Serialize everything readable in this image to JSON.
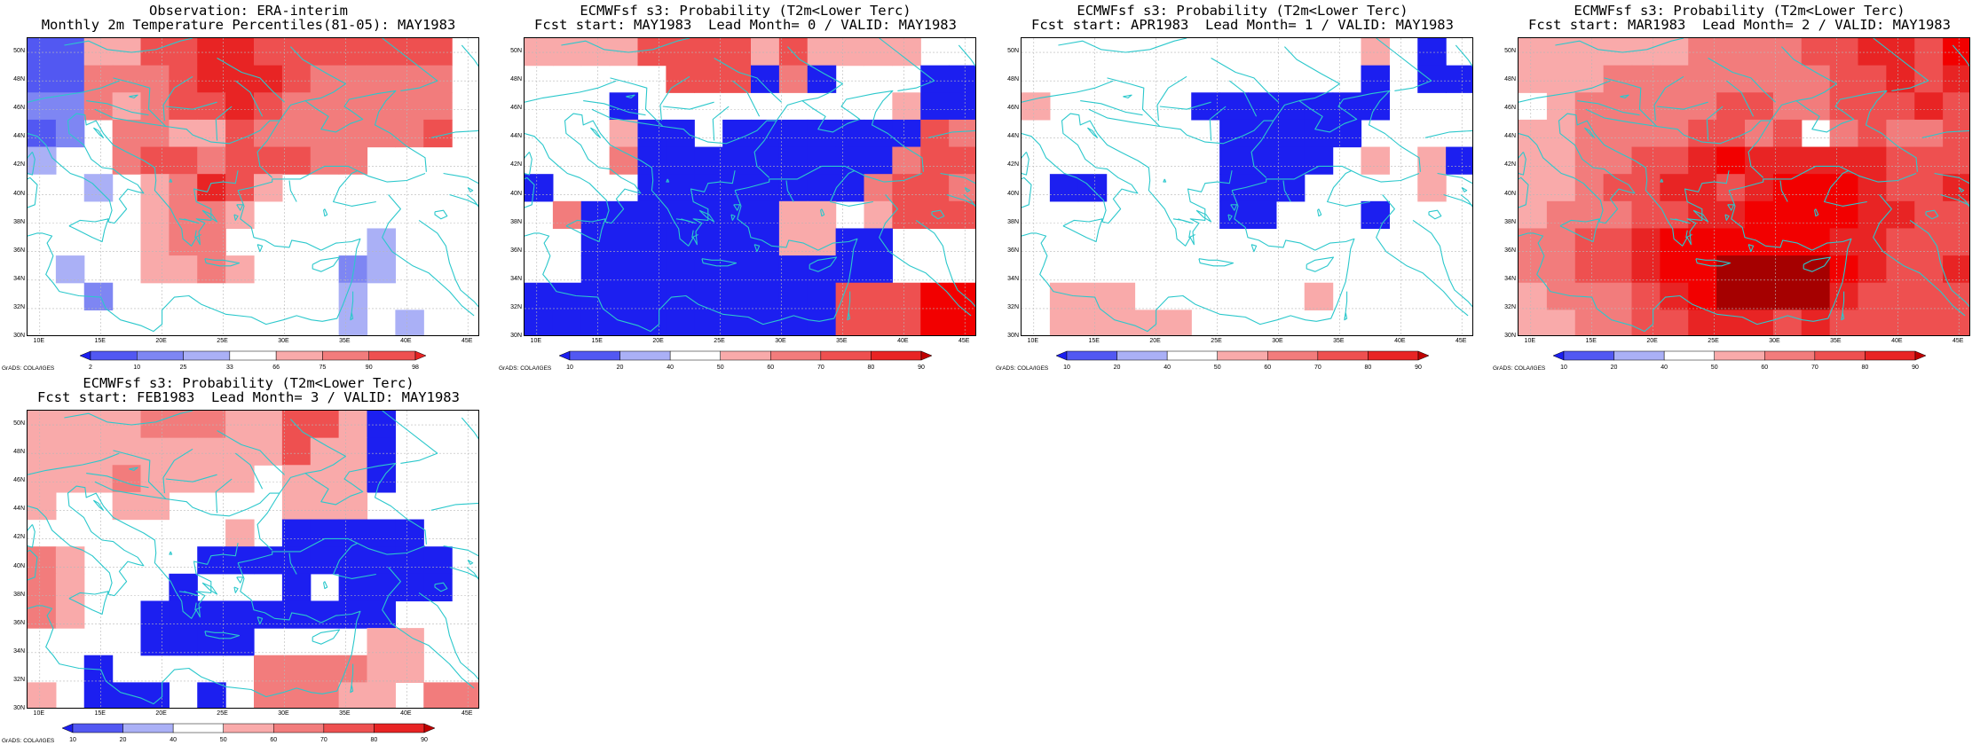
{
  "colors": {
    "red_levels": [
      "#ffffff",
      "#f9aaaa",
      "#f27c7c",
      "#ee5050",
      "#e82424",
      "#f20000",
      "#a50000"
    ],
    "blue_levels": [
      "#ffffff",
      "#aab0f6",
      "#7e86f3",
      "#5258f2",
      "#1c1ff0"
    ],
    "coast": "#2cc8cc",
    "grid": "#b8b8b8"
  },
  "axes": {
    "lat_ticks": [
      "50N",
      "48N",
      "46N",
      "44N",
      "42N",
      "40N",
      "38N",
      "36N",
      "34N",
      "32N",
      "30N"
    ],
    "lon_ticks": [
      "10E",
      "15E",
      "20E",
      "25E",
      "30E",
      "35E",
      "40E",
      "45E"
    ],
    "lon_range": [
      9,
      46
    ],
    "lat_range": [
      30,
      51
    ],
    "grid": true
  },
  "credit": "GrADS: COLA/IGES",
  "obs_colorbar": {
    "labels": [
      "2",
      "10",
      "25",
      "33",
      "66",
      "75",
      "90",
      "98"
    ],
    "colors": [
      "#1c1ff0",
      "#5258f2",
      "#7e86f3",
      "#aab0f6",
      "#ffffff",
      "#f9aaaa",
      "#f27c7c",
      "#ee5050",
      "#e82424"
    ]
  },
  "prob_colorbar": {
    "labels": [
      "10",
      "20",
      "40",
      "50",
      "60",
      "70",
      "80",
      "90"
    ],
    "colors": [
      "#1c1ff0",
      "#5258f2",
      "#aab0f6",
      "#ffffff",
      "#f9aaaa",
      "#f27c7c",
      "#ee5050",
      "#e82424",
      "#c00000"
    ]
  },
  "panels": [
    {
      "title1": "Observation: ERA-interim",
      "title2": "Monthly 2m Temperature Percentiles(81-05): MAY1983",
      "colorbar": "obs",
      "grid_values": [
        "-3 -3 +1 +1 +3 +3 +4 +4 +3 +3 +3 +3 +3 +3 +3 0",
        "-3 -3 +2 +2 +2 +3 +4 +4 +4 +3 +2 +2 +2 +2 +2 0",
        "-2 -2 +2 +1 +2 +3 +3 +4 +3 +2 +2 +2 +2 +2 +2 0",
        "-3 -2 0 +2 +2 +1 +1 +3 +2 +2 +2 +2 +2 +2 +3 0",
        "-1 0 0 +2 +3 +3 +2 +3 +3 +3 +2 +2 0 0 0 0",
        "0 0 -1 0 +1 +2 +4 +3 +1 0 0 0 0 0 0 0",
        "0 0 0 0 +1 +2 +2 +1 0 0 0 0 0 0 0 0",
        "0 0 0 0 +1 +2 +2 0 0 0 0 0 -1 0 0 0",
        "0 -1 0 0 +1 +1 +2 +1 0 0 0 -2 -1 0 0 0",
        "0 0 -2 0 0 0 0 0 0 0 0 -1 0 0 0 0",
        "0 0 0 0 0 0 0 0 0 0 0 -1 0 -1 0 0"
      ]
    },
    {
      "title1": "ECMWFsf s3: Probability (T2m<Lower Terc)",
      "title2": "Fcst start: MAY1983  Lead Month= 0 / VALID: MAY1983",
      "colorbar": "prob",
      "grid_values": [
        "+1 +1 +1 +1 +3 +3 +3 +3 +1 +3 +1 +1 +1 +1 0 0",
        "0 0 0 0 0 +3 +3 +3 -4 +2 -4 0 0 0 -4 -4",
        "0 0 0 -4 0 0 0 0 0 0 0 0 0 +1 -4 -4",
        "0 0 0 +1 -4 -4 0 -4 -4 -4 -4 -4 -4 -4 +3 +2",
        "0 0 0 +2 -4 -4 -4 -4 -4 -4 -4 -4 -4 +2 +3 +3",
        "-4 0 0 0 -4 -4 -4 -4 -4 -4 -4 -4 +2 +3 +3 +2",
        "0 +2 -4 -4 -4 -4 -4 -4 -4 +1 +1 0 +1 +3 +3 +3",
        "0 0 -4 -4 -4 -4 -4 -4 -4 +1 +1 -4 -4 0 0 0",
        "0 0 -4 -4 -4 -4 -4 -4 -4 -4 -4 -4 -4 0 0 0",
        "-4 -4 -4 -4 -4 -4 -4 -4 -4 -4 -4 +3 +3 +3 +5 +5",
        "-4 -4 -4 -4 -4 -4 -4 -4 -4 -4 -4 +3 +3 +3 +5 +5"
      ]
    },
    {
      "title1": "ECMWFsf s3: Probability (T2m<Lower Terc)",
      "title2": "Fcst start: APR1983  Lead Month= 1 / VALID: MAY1983",
      "colorbar": "prob",
      "grid_values": [
        "0 0 0 0 0 0 0 0 0 0 0 0 +1 0 -4 0",
        "0 0 0 0 0 0 0 0 0 0 0 0 -4 0 -4 -4",
        "+1 0 0 0 0 0 -4 -4 -4 -4 -4 -4 -4 0 0 0",
        "0 0 0 0 0 0 0 -4 -4 -4 -4 -4 0 0 0 0",
        "0 0 0 0 0 0 0 -4 -4 -4 -4 0 +1 0 +1 -4",
        "0 -4 -4 0 0 0 0 -4 -4 -4 0 0 0 0 +1 0",
        "0 0 0 0 0 0 0 -4 -4 0 0 0 -4 0 0 0",
        "0 0 0 0 0 0 0 0 0 0 0 0 0 0 0 0",
        "0 0 0 0 0 0 0 0 0 0 0 0 0 0 0 0",
        "0 +1 +1 +1 0 0 0 0 0 0 +1 0 0 0 0 0",
        "0 +1 +1 +1 +1 +1 0 0 0 0 0 0 0 0 0 0"
      ]
    },
    {
      "title1": "ECMWFsf s3: Probability (T2m<Lower Terc)",
      "title2": "Fcst start: MAR1983  Lead Month= 2 / VALID: MAY1983",
      "colorbar": "prob",
      "grid_values": [
        "+1 +1 +1 +1 +1 +1 +2 +2 +2 +2 +3 +3 +4 +4 +3 +5",
        "+1 +1 +1 +2 +2 +2 +2 +2 +2 +2 +2 +3 +3 +4 +3 +4",
        "0 +1 +2 +2 +2 +2 +2 +3 +3 +2 +2 +3 +3 +3 +4 +3",
        "+1 +1 +2 +2 +2 +2 +3 +3 +2 +3 0 +2 +3 +2 +2 +3",
        "+1 +1 +2 +2 +3 +3 +4 +5 +4 +4 +4 +4 +4 +3 +3 +3",
        "+1 +1 +2 +3 +3 +4 +4 +3 +4 +5 +5 +5 +4 +3 +3 +4",
        "+1 +2 +2 +2 +3 +3 +4 +4 +5 +5 +5 +5 +4 +4 +3 +3",
        "+2 +2 +3 +3 +4 +5 +5 +5 +5 +5 +5 +4 +4 +3 +3 +3",
        "+2 +2 +3 +3 +4 +5 +5 +6 +6 +6 +6 +5 +4 +3 +3 +4",
        "+1 +2 +2 +2 +3 +4 +5 +6 +6 +6 +6 +4 +3 +3 +3 +3",
        "+1 +1 +2 +2 +3 +3 +4 +4 +4 +3 +4 +3 +3 +3 +3 +3"
      ]
    },
    {
      "title1": "ECMWFsf s3: Probability (T2m<Lower Terc)",
      "title2": "Fcst start: FEB1983  Lead Month= 3 / VALID: MAY1983",
      "colorbar": "prob",
      "grid_values": [
        "+1 +1 +1 +1 +2 +2 +2 +1 +1 +3 +3 +1 -4 0 0 0",
        "+1 +1 +1 +1 +1 +1 +1 +1 +1 +3 +1 +1 -4 0 0 0",
        "+1 +1 +1 +2 +1 +1 +1 +1 0 +1 +1 +1 -4 0 0 0",
        "+1 0 0 +1 +1 0 0 0 0 +1 +1 +1 0 0 0 0",
        "0 0 0 0 0 0 0 +1 0 -4 -4 -4 -4 -4 0 0",
        "+2 +1 0 0 0 0 -4 -4 -4 -4 -4 -4 -4 -4 -4 0",
        "+2 +1 0 0 0 -4 0 0 0 -4 0 -4 -4 -4 -4 0",
        "+2 +1 0 0 -4 -4 -4 -4 -4 -4 -4 -4 -4 0 0 0",
        "0 0 0 0 -4 -4 -4 -4 0 0 0 0 +1 +1 0 0",
        "0 0 -4 0 0 0 0 0 +2 +2 +2 +2 +1 +1 0 0",
        "+1 0 -4 -4 -4 0 -4 0 +2 +2 +2 +1 +1 0 +2 +2"
      ]
    }
  ]
}
